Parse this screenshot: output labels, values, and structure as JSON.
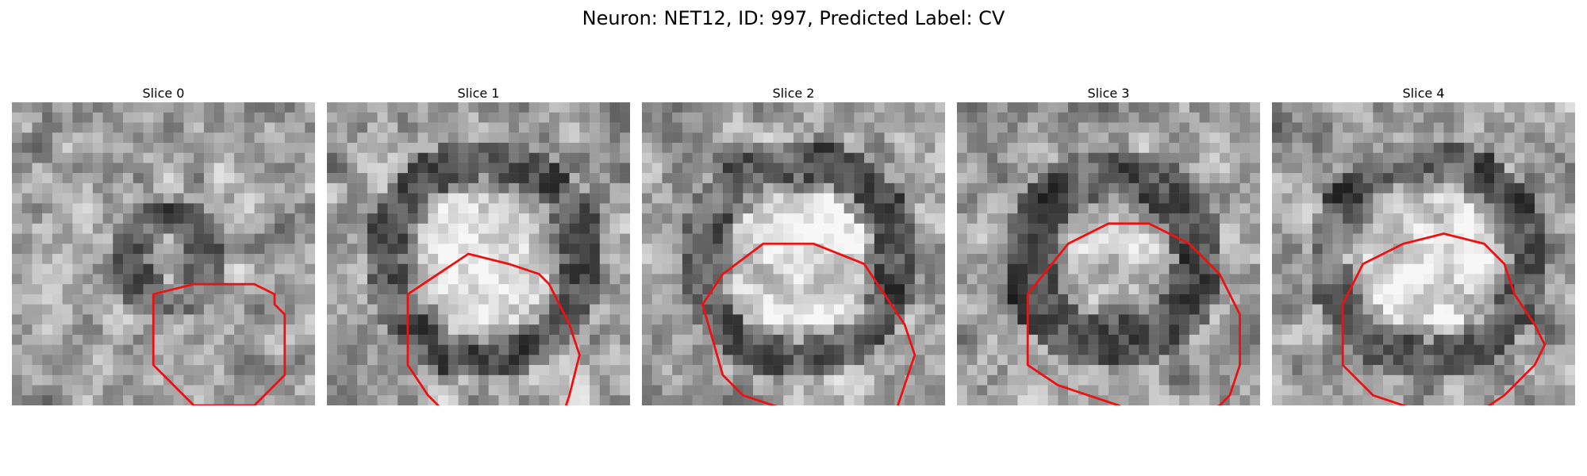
{
  "suptitle": "Neuron: NET12, ID: 997, Predicted Label: CV",
  "outline_color": "#ee1111",
  "panels": [
    {
      "title": "Slice 0",
      "seed": 11,
      "blob": "ring",
      "outline": [
        [
          14,
          19
        ],
        [
          18,
          18
        ],
        [
          24,
          18
        ],
        [
          26,
          19
        ],
        [
          26,
          20
        ],
        [
          27,
          21
        ],
        [
          27,
          27
        ],
        [
          26,
          28
        ],
        [
          25,
          29
        ],
        [
          24,
          30
        ],
        [
          18,
          30
        ],
        [
          17,
          29
        ],
        [
          16,
          28
        ],
        [
          15,
          27
        ],
        [
          14,
          26
        ],
        [
          14,
          20
        ]
      ]
    },
    {
      "title": "Slice 1",
      "seed": 23,
      "blob": "bright",
      "outline": [
        [
          8,
          19
        ],
        [
          11,
          17
        ],
        [
          14,
          15
        ],
        [
          18,
          16
        ],
        [
          21,
          17
        ],
        [
          22,
          18
        ],
        [
          23,
          20
        ],
        [
          24,
          22
        ],
        [
          25,
          25
        ],
        [
          24,
          29
        ],
        [
          23,
          32
        ],
        [
          22,
          33
        ],
        [
          19,
          33
        ],
        [
          17,
          31
        ],
        [
          12,
          31
        ],
        [
          10,
          29
        ],
        [
          8,
          26
        ]
      ]
    },
    {
      "title": "Slice 2",
      "seed": 37,
      "blob": "bright",
      "outline": [
        [
          6,
          20
        ],
        [
          8,
          17
        ],
        [
          12,
          14
        ],
        [
          17,
          14
        ],
        [
          22,
          16
        ],
        [
          24,
          19
        ],
        [
          26,
          22
        ],
        [
          27,
          25
        ],
        [
          26,
          28
        ],
        [
          25,
          31
        ],
        [
          22,
          32
        ],
        [
          20,
          32
        ],
        [
          17,
          31
        ],
        [
          13,
          30
        ],
        [
          10,
          29
        ],
        [
          8,
          27
        ]
      ]
    },
    {
      "title": "Slice 3",
      "seed": 53,
      "blob": "dark",
      "outline": [
        [
          7,
          19
        ],
        [
          11,
          14
        ],
        [
          15,
          12
        ],
        [
          19,
          12
        ],
        [
          23,
          14
        ],
        [
          26,
          17
        ],
        [
          28,
          21
        ],
        [
          28,
          26
        ],
        [
          27,
          29
        ],
        [
          26,
          30
        ],
        [
          24,
          31
        ],
        [
          21,
          32
        ],
        [
          18,
          31
        ],
        [
          16,
          30
        ],
        [
          13,
          29
        ],
        [
          10,
          28
        ],
        [
          7,
          26
        ]
      ]
    },
    {
      "title": "Slice 4",
      "seed": 71,
      "blob": "bright",
      "outline": [
        [
          7,
          20
        ],
        [
          9,
          16
        ],
        [
          13,
          14
        ],
        [
          17,
          13
        ],
        [
          21,
          14
        ],
        [
          23,
          16
        ],
        [
          24,
          19
        ],
        [
          26,
          22
        ],
        [
          27,
          24
        ],
        [
          26,
          26
        ],
        [
          25,
          27
        ],
        [
          23,
          29
        ],
        [
          20,
          31
        ],
        [
          16,
          31
        ],
        [
          13,
          30
        ],
        [
          10,
          29
        ],
        [
          7,
          26
        ]
      ]
    }
  ]
}
